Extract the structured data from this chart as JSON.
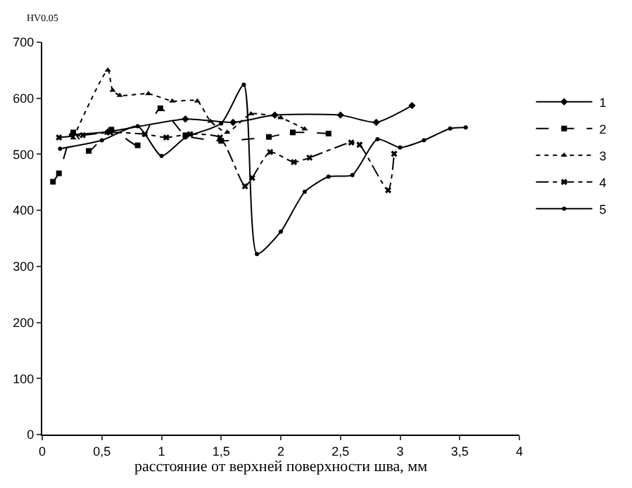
{
  "chart_data": {
    "type": "line",
    "ylabel": "HV0.05",
    "xlabel": "расстояние от верхней поверхности шва, мм",
    "xlim": [
      0,
      4
    ],
    "xticks": [
      0,
      {
        "value": 0.5,
        "label": "0,5"
      },
      1,
      {
        "value": 1.5,
        "label": "1,5"
      },
      2,
      {
        "value": 2.5,
        "label": "2,5"
      },
      3,
      {
        "value": 3.5,
        "label": "3,5"
      },
      4
    ],
    "ylim": [
      0,
      700
    ],
    "yticks": [
      0,
      100,
      200,
      300,
      400,
      500,
      600,
      700
    ],
    "grid": false,
    "legend": "right",
    "series": [
      {
        "name": "1",
        "color": "#000000",
        "marker": "diamond",
        "line_style": "solid",
        "x": [
          0.25,
          0.55,
          1.2,
          1.6,
          1.95,
          2.5,
          2.8,
          3.1
        ],
        "values": [
          535,
          540,
          563,
          557,
          570,
          570,
          557,
          587
        ]
      },
      {
        "name": "2",
        "color": "#000000",
        "marker": "square",
        "line_style": "dashed",
        "x": [
          0.09,
          0.14,
          0.26,
          0.39,
          0.58,
          0.8,
          0.99,
          1.2,
          1.5,
          1.9,
          2.1,
          2.4
        ],
        "values": [
          451,
          466,
          539,
          506,
          544,
          516,
          582,
          534,
          524,
          531,
          539,
          537
        ]
      },
      {
        "name": "3",
        "color": "#000000",
        "marker": "triangle",
        "line_style": "dotted",
        "x": [
          0.26,
          0.55,
          0.59,
          0.65,
          0.89,
          1.09,
          1.3,
          1.41,
          1.55,
          1.75,
          2.0,
          2.2
        ],
        "values": [
          529,
          650,
          614,
          605,
          608,
          595,
          595,
          559,
          539,
          572,
          565,
          545
        ]
      },
      {
        "name": "4",
        "color": "#000000",
        "marker": "cross",
        "line_style": "dashdot",
        "x": [
          0.14,
          0.34,
          0.57,
          0.86,
          1.04,
          1.24,
          1.49,
          1.7,
          1.76,
          1.91,
          2.11,
          2.24,
          2.59,
          2.66,
          2.9,
          2.95
        ],
        "values": [
          530,
          534,
          539,
          536,
          530,
          536,
          530,
          443,
          458,
          504,
          486,
          494,
          521,
          517,
          436,
          501
        ]
      },
      {
        "name": "5",
        "color": "#000000",
        "marker": "circle",
        "line_style": "solid",
        "x": [
          0.15,
          0.5,
          0.8,
          1.0,
          1.2,
          1.5,
          1.69,
          1.8,
          2.0,
          2.2,
          2.4,
          2.6,
          2.81,
          3.0,
          3.2,
          3.42,
          3.55
        ],
        "values": [
          510,
          525,
          550,
          497,
          530,
          555,
          624,
          322,
          362,
          433,
          460,
          463,
          527,
          512,
          525,
          546,
          548
        ]
      }
    ]
  }
}
